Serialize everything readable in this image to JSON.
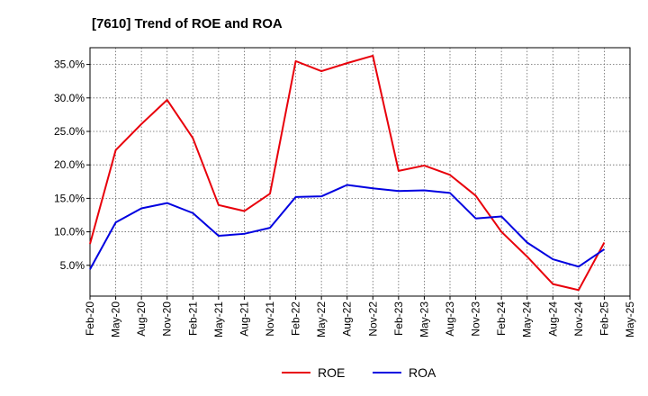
{
  "chart_data": {
    "type": "line",
    "title": "[7610]  Trend of ROE and ROA",
    "xlabel": "",
    "ylabel": "",
    "categories": [
      "Feb-20",
      "May-20",
      "Aug-20",
      "Nov-20",
      "Feb-21",
      "May-21",
      "Aug-21",
      "Nov-21",
      "Feb-22",
      "May-22",
      "Aug-22",
      "Nov-22",
      "Feb-23",
      "May-23",
      "Aug-23",
      "Nov-23",
      "Feb-24",
      "May-24",
      "Aug-24",
      "Nov-24",
      "Feb-25",
      "May-25"
    ],
    "ylim": [
      0.4,
      37.5
    ],
    "yticks": [
      5,
      10,
      15,
      20,
      25,
      30,
      35
    ],
    "ytick_labels": [
      "5.0%",
      "10.0%",
      "15.0%",
      "20.0%",
      "25.0%",
      "30.0%",
      "35.0%"
    ],
    "grid": true,
    "legend_position": "bottom",
    "series": [
      {
        "name": "ROE",
        "color": "#e8000b",
        "values": [
          8.2,
          22.2,
          26.1,
          29.7,
          24.0,
          14.0,
          13.1,
          15.7,
          35.5,
          34.0,
          35.2,
          36.3,
          19.1,
          19.9,
          18.5,
          15.4,
          10.0,
          6.3,
          2.2,
          1.3,
          8.4,
          null
        ]
      },
      {
        "name": "ROA",
        "color": "#0000e0",
        "values": [
          4.4,
          11.4,
          13.5,
          14.3,
          12.8,
          9.4,
          9.7,
          10.6,
          15.2,
          15.3,
          17.0,
          16.5,
          16.1,
          16.2,
          15.8,
          12.0,
          12.3,
          8.4,
          5.9,
          4.8,
          7.4,
          null
        ]
      }
    ]
  }
}
